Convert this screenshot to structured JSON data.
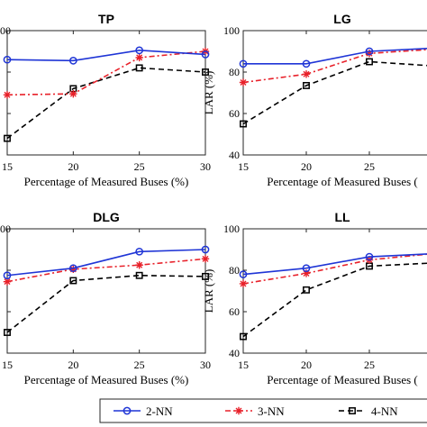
{
  "chart_data": [
    {
      "type": "line",
      "title": "TP",
      "xlabel": "Percentage of Measured Buses (%)",
      "ylabel": "",
      "x": [
        15,
        20,
        25,
        30
      ],
      "xticks": [
        "15",
        "20",
        "25",
        "30"
      ],
      "xlim": [
        15,
        30
      ],
      "ylim": [
        40,
        100
      ],
      "yticks": [
        "00"
      ],
      "grid": false,
      "series": [
        {
          "name": "2-NN",
          "values": [
            86,
            85.5,
            90.5,
            88.5
          ]
        },
        {
          "name": "3-NN",
          "values": [
            69,
            69.5,
            87,
            90
          ]
        },
        {
          "name": "4-NN",
          "values": [
            48,
            72,
            82,
            80
          ]
        }
      ]
    },
    {
      "type": "line",
      "title": "LG",
      "xlabel": "Percentage of Measured Buses (",
      "ylabel": "LAR (%)",
      "x": [
        15,
        20,
        25,
        30
      ],
      "xticks": [
        "15",
        "20",
        "25"
      ],
      "xlim": [
        15,
        30
      ],
      "ylim": [
        40,
        100
      ],
      "yticks": [
        "40",
        "60",
        "80",
        "100"
      ],
      "grid": false,
      "series": [
        {
          "name": "2-NN",
          "values": [
            84,
            84,
            90,
            91.5
          ]
        },
        {
          "name": "3-NN",
          "values": [
            75,
            79,
            89,
            91
          ]
        },
        {
          "name": "4-NN",
          "values": [
            55,
            73.5,
            85,
            83
          ]
        }
      ]
    },
    {
      "type": "line",
      "title": "DLG",
      "xlabel": "Percentage of Measured Buses (%)",
      "ylabel": "",
      "x": [
        15,
        20,
        25,
        30
      ],
      "xticks": [
        "15",
        "20",
        "25",
        "30"
      ],
      "xlim": [
        15,
        30
      ],
      "ylim": [
        40,
        100
      ],
      "yticks": [
        "00"
      ],
      "grid": false,
      "series": [
        {
          "name": "2-NN",
          "values": [
            77.5,
            81,
            89,
            90
          ]
        },
        {
          "name": "3-NN",
          "values": [
            74.5,
            80.5,
            82.5,
            85.5
          ]
        },
        {
          "name": "4-NN",
          "values": [
            50,
            75,
            77.5,
            77
          ]
        }
      ]
    },
    {
      "type": "line",
      "title": "LL",
      "xlabel": "Percentage of Measured Buses (",
      "ylabel": "LAR (%)",
      "x": [
        15,
        20,
        25,
        30
      ],
      "xticks": [
        "15",
        "20",
        "25"
      ],
      "xlim": [
        15,
        30
      ],
      "ylim": [
        40,
        100
      ],
      "yticks": [
        "40",
        "60",
        "80",
        "100"
      ],
      "grid": false,
      "series": [
        {
          "name": "2-NN",
          "values": [
            78,
            81,
            86.5,
            88
          ]
        },
        {
          "name": "3-NN",
          "values": [
            73.5,
            78.5,
            85,
            88
          ]
        },
        {
          "name": "4-NN",
          "values": [
            48,
            70.5,
            82,
            83.5
          ]
        }
      ]
    }
  ],
  "legend": {
    "placement": "bottom",
    "items": [
      {
        "label": "2-NN",
        "color": "#1f35d6",
        "marker": "circle",
        "dash": "solid"
      },
      {
        "label": "3-NN",
        "color": "#e8212a",
        "marker": "asterisk",
        "dash": "dashdot"
      },
      {
        "label": "4-NN",
        "color": "#000000",
        "marker": "square",
        "dash": "dashed"
      }
    ]
  }
}
